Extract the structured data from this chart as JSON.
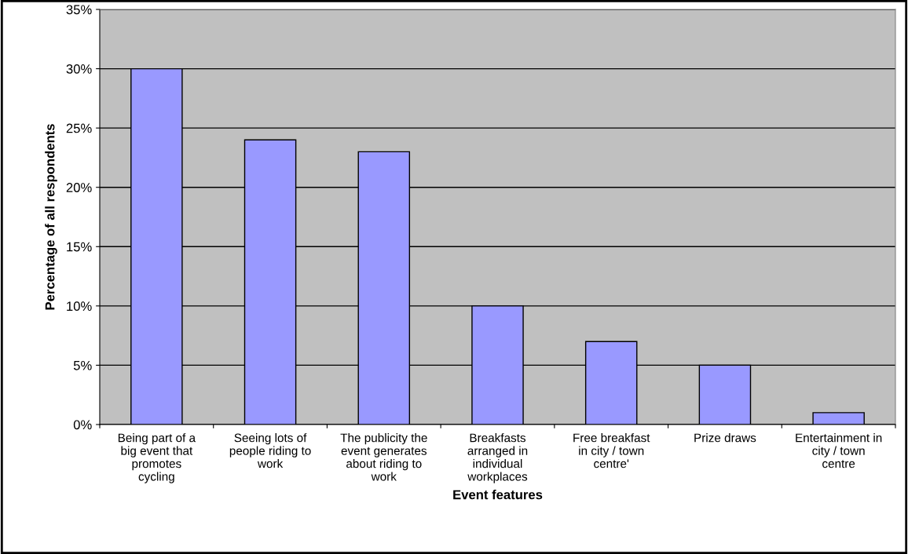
{
  "chart_data": {
    "type": "bar",
    "xlabel": "Event features",
    "ylabel": "Percentage of all respondents",
    "categories": [
      "Being part of a\nbig event that\npromotes\ncycling",
      "Seeing lots of\npeople riding to\nwork",
      "The publicity the\nevent generates\nabout riding to\nwork",
      "Breakfasts\narranged in\nindividual\nworkplaces",
      "Free breakfast\nin city / town\ncentre'",
      "Prize draws",
      "Entertainment in\ncity / town\ncentre"
    ],
    "values": [
      30,
      24,
      23,
      10,
      7,
      5,
      1
    ],
    "color": "#9999ff",
    "ylim": [
      0,
      35
    ],
    "yticks": [
      {
        "value": 0,
        "label": "0%"
      },
      {
        "value": 5,
        "label": "5%"
      },
      {
        "value": 10,
        "label": "10%"
      },
      {
        "value": 15,
        "label": "15%"
      },
      {
        "value": 20,
        "label": "20%"
      },
      {
        "value": 25,
        "label": "25%"
      },
      {
        "value": 30,
        "label": "30%"
      },
      {
        "value": 35,
        "label": "35%"
      }
    ],
    "grid": "y"
  }
}
